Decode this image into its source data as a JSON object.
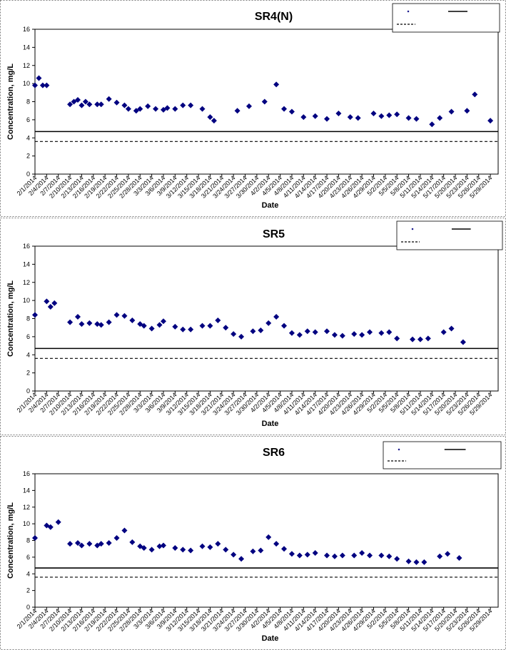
{
  "chart_data": [
    {
      "type": "scatter",
      "title": "SR4(N)",
      "xlabel": "Date",
      "ylabel": "Concentration, mg/L",
      "ylim": [
        0,
        16
      ],
      "yticks": [
        0,
        2,
        4,
        6,
        8,
        10,
        12,
        14,
        16
      ],
      "grid": false,
      "legend_placement": "top-right",
      "marker_color": "#000080",
      "x_tick_labels": [
        "2/1/2014",
        "2/4/2014",
        "2/7/2014",
        "2/10/2014",
        "2/13/2014",
        "2/16/2014",
        "2/19/2014",
        "2/22/2014",
        "2/25/2014",
        "2/28/2014",
        "3/3/2014",
        "3/6/2014",
        "3/9/2014",
        "3/12/2014",
        "3/15/2014",
        "3/18/2014",
        "3/21/2014",
        "3/24/2014",
        "3/27/2014",
        "3/30/2014",
        "4/2/2014",
        "4/5/2014",
        "4/8/2014",
        "4/11/2014",
        "4/14/2014",
        "4/17/2014",
        "4/20/2014",
        "4/23/2014",
        "4/26/2014",
        "4/29/2014",
        "5/2/2014",
        "5/5/2014",
        "5/8/2014",
        "5/11/2014",
        "5/14/2014",
        "5/17/2014",
        "5/20/2014",
        "5/23/2014",
        "5/26/2014",
        "5/29/2014"
      ],
      "x_range": [
        "2/1/2014",
        "5/31/2014"
      ],
      "points": [
        [
          "2/1/2014",
          9.8
        ],
        [
          "2/2/2014",
          10.6
        ],
        [
          "2/3/2014",
          9.8
        ],
        [
          "2/4/2014",
          9.8
        ],
        [
          "2/10/2014",
          7.7
        ],
        [
          "2/11/2014",
          8.0
        ],
        [
          "2/12/2014",
          8.2
        ],
        [
          "2/13/2014",
          7.6
        ],
        [
          "2/14/2014",
          8.0
        ],
        [
          "2/15/2014",
          7.7
        ],
        [
          "2/17/2014",
          7.7
        ],
        [
          "2/18/2014",
          7.7
        ],
        [
          "2/20/2014",
          8.3
        ],
        [
          "2/22/2014",
          7.9
        ],
        [
          "2/24/2014",
          7.6
        ],
        [
          "2/25/2014",
          7.2
        ],
        [
          "2/27/2014",
          7.0
        ],
        [
          "2/28/2014",
          7.2
        ],
        [
          "3/2/2014",
          7.5
        ],
        [
          "3/4/2014",
          7.2
        ],
        [
          "3/6/2014",
          7.1
        ],
        [
          "3/7/2014",
          7.3
        ],
        [
          "3/9/2014",
          7.2
        ],
        [
          "3/11/2014",
          7.6
        ],
        [
          "3/13/2014",
          7.6
        ],
        [
          "3/16/2014",
          7.2
        ],
        [
          "3/18/2014",
          6.3
        ],
        [
          "3/19/2014",
          5.9
        ],
        [
          "3/25/2014",
          7.0
        ],
        [
          "3/28/2014",
          7.5
        ],
        [
          "4/1/2014",
          8.0
        ],
        [
          "4/4/2014",
          9.9
        ],
        [
          "4/6/2014",
          7.2
        ],
        [
          "4/8/2014",
          6.9
        ],
        [
          "4/11/2014",
          6.3
        ],
        [
          "4/14/2014",
          6.4
        ],
        [
          "4/17/2014",
          6.1
        ],
        [
          "4/20/2014",
          6.7
        ],
        [
          "4/23/2014",
          6.3
        ],
        [
          "4/25/2014",
          6.2
        ],
        [
          "4/29/2014",
          6.7
        ],
        [
          "5/1/2014",
          6.4
        ],
        [
          "5/3/2014",
          6.5
        ],
        [
          "5/5/2014",
          6.6
        ],
        [
          "5/8/2014",
          6.2
        ],
        [
          "5/10/2014",
          6.1
        ],
        [
          "5/14/2014",
          5.5
        ],
        [
          "5/16/2014",
          6.2
        ],
        [
          "5/19/2014",
          6.9
        ],
        [
          "5/23/2014",
          7.0
        ],
        [
          "5/25/2014",
          8.8
        ],
        [
          "5/29/2014",
          5.9
        ]
      ],
      "reference_lines": [
        {
          "style": "solid",
          "value": 4.7
        },
        {
          "style": "dashed",
          "value": 3.6
        }
      ]
    },
    {
      "type": "scatter",
      "title": "SR5",
      "xlabel": "Date",
      "ylabel": "Concentration, mg/L",
      "ylim": [
        0,
        16
      ],
      "yticks": [
        0,
        2,
        4,
        6,
        8,
        10,
        12,
        14,
        16
      ],
      "grid": false,
      "legend_placement": "top-right",
      "marker_color": "#000080",
      "x_tick_labels": [
        "2/1/2014",
        "2/4/2014",
        "2/7/2014",
        "2/10/2014",
        "2/13/2014",
        "2/16/2014",
        "2/19/2014",
        "2/22/2014",
        "2/25/2014",
        "2/28/2014",
        "3/3/2014",
        "3/6/2014",
        "3/9/2014",
        "3/12/2014",
        "3/15/2014",
        "3/18/2014",
        "3/21/2014",
        "3/24/2014",
        "3/27/2014",
        "3/30/2014",
        "4/2/2014",
        "4/5/2014",
        "4/8/2014",
        "4/11/2014",
        "4/14/2014",
        "4/17/2014",
        "4/20/2014",
        "4/23/2014",
        "4/26/2014",
        "4/29/2014",
        "5/2/2014",
        "5/5/2014",
        "5/8/2014",
        "5/11/2014",
        "5/14/2014",
        "5/17/2014",
        "5/20/2014",
        "5/23/2014",
        "5/26/2014",
        "5/29/2014"
      ],
      "x_range": [
        "2/1/2014",
        "5/31/2014"
      ],
      "points": [
        [
          "2/1/2014",
          8.4
        ],
        [
          "2/4/2014",
          9.9
        ],
        [
          "2/5/2014",
          9.3
        ],
        [
          "2/6/2014",
          9.7
        ],
        [
          "2/10/2014",
          7.6
        ],
        [
          "2/12/2014",
          8.2
        ],
        [
          "2/13/2014",
          7.4
        ],
        [
          "2/15/2014",
          7.5
        ],
        [
          "2/17/2014",
          7.4
        ],
        [
          "2/18/2014",
          7.3
        ],
        [
          "2/20/2014",
          7.6
        ],
        [
          "2/22/2014",
          8.4
        ],
        [
          "2/24/2014",
          8.3
        ],
        [
          "2/26/2014",
          7.8
        ],
        [
          "2/28/2014",
          7.4
        ],
        [
          "3/1/2014",
          7.2
        ],
        [
          "3/3/2014",
          6.9
        ],
        [
          "3/5/2014",
          7.3
        ],
        [
          "3/6/2014",
          7.7
        ],
        [
          "3/9/2014",
          7.1
        ],
        [
          "3/11/2014",
          6.8
        ],
        [
          "3/13/2014",
          6.8
        ],
        [
          "3/16/2014",
          7.2
        ],
        [
          "3/18/2014",
          7.2
        ],
        [
          "3/20/2014",
          7.8
        ],
        [
          "3/22/2014",
          7.0
        ],
        [
          "3/24/2014",
          6.3
        ],
        [
          "3/26/2014",
          6.0
        ],
        [
          "3/29/2014",
          6.6
        ],
        [
          "3/31/2014",
          6.7
        ],
        [
          "4/2/2014",
          7.5
        ],
        [
          "4/4/2014",
          8.2
        ],
        [
          "4/6/2014",
          7.2
        ],
        [
          "4/8/2014",
          6.4
        ],
        [
          "4/10/2014",
          6.2
        ],
        [
          "4/12/2014",
          6.6
        ],
        [
          "4/14/2014",
          6.5
        ],
        [
          "4/17/2014",
          6.6
        ],
        [
          "4/19/2014",
          6.2
        ],
        [
          "4/21/2014",
          6.1
        ],
        [
          "4/24/2014",
          6.3
        ],
        [
          "4/26/2014",
          6.2
        ],
        [
          "4/28/2014",
          6.5
        ],
        [
          "5/1/2014",
          6.4
        ],
        [
          "5/3/2014",
          6.5
        ],
        [
          "5/5/2014",
          5.8
        ],
        [
          "5/9/2014",
          5.7
        ],
        [
          "5/11/2014",
          5.7
        ],
        [
          "5/13/2014",
          5.8
        ],
        [
          "5/17/2014",
          6.5
        ],
        [
          "5/19/2014",
          6.9
        ],
        [
          "5/22/2014",
          5.4
        ]
      ],
      "reference_lines": [
        {
          "style": "solid",
          "value": 4.7
        },
        {
          "style": "dashed",
          "value": 3.6
        }
      ]
    },
    {
      "type": "scatter",
      "title": "SR6",
      "xlabel": "Date",
      "ylabel": "Concentration, mg/L",
      "ylim": [
        0,
        16
      ],
      "yticks": [
        0,
        2,
        4,
        6,
        8,
        10,
        12,
        14,
        16
      ],
      "grid": false,
      "legend_placement": "top-right",
      "marker_color": "#000080",
      "x_tick_labels": [
        "2/1/2014",
        "2/4/2014",
        "2/7/2014",
        "2/10/2014",
        "2/13/2014",
        "2/16/2014",
        "2/19/2014",
        "2/22/2014",
        "2/25/2014",
        "2/28/2014",
        "3/3/2014",
        "3/6/2014",
        "3/9/2014",
        "3/12/2014",
        "3/15/2014",
        "3/18/2014",
        "3/21/2014",
        "3/24/2014",
        "3/27/2014",
        "3/30/2014",
        "4/2/2014",
        "4/5/2014",
        "4/8/2014",
        "4/11/2014",
        "4/14/2014",
        "4/17/2014",
        "4/20/2014",
        "4/23/2014",
        "4/26/2014",
        "4/29/2014",
        "5/2/2014",
        "5/5/2014",
        "5/8/2014",
        "5/11/2014",
        "5/14/2014",
        "5/17/2014",
        "5/20/2014",
        "5/23/2014",
        "5/26/2014",
        "5/29/2014"
      ],
      "x_range": [
        "2/1/2014",
        "5/31/2014"
      ],
      "points": [
        [
          "2/1/2014",
          8.3
        ],
        [
          "2/4/2014",
          9.8
        ],
        [
          "2/5/2014",
          9.6
        ],
        [
          "2/7/2014",
          10.2
        ],
        [
          "2/10/2014",
          7.6
        ],
        [
          "2/12/2014",
          7.7
        ],
        [
          "2/13/2014",
          7.4
        ],
        [
          "2/15/2014",
          7.6
        ],
        [
          "2/17/2014",
          7.4
        ],
        [
          "2/18/2014",
          7.6
        ],
        [
          "2/20/2014",
          7.7
        ],
        [
          "2/22/2014",
          8.3
        ],
        [
          "2/24/2014",
          9.2
        ],
        [
          "2/26/2014",
          7.8
        ],
        [
          "2/28/2014",
          7.3
        ],
        [
          "3/1/2014",
          7.1
        ],
        [
          "3/3/2014",
          6.9
        ],
        [
          "3/5/2014",
          7.3
        ],
        [
          "3/6/2014",
          7.4
        ],
        [
          "3/9/2014",
          7.1
        ],
        [
          "3/11/2014",
          6.9
        ],
        [
          "3/13/2014",
          6.8
        ],
        [
          "3/16/2014",
          7.3
        ],
        [
          "3/18/2014",
          7.2
        ],
        [
          "3/20/2014",
          7.6
        ],
        [
          "3/22/2014",
          6.9
        ],
        [
          "3/24/2014",
          6.3
        ],
        [
          "3/26/2014",
          5.8
        ],
        [
          "3/29/2014",
          6.7
        ],
        [
          "3/31/2014",
          6.8
        ],
        [
          "4/2/2014",
          8.4
        ],
        [
          "4/4/2014",
          7.6
        ],
        [
          "4/6/2014",
          7.0
        ],
        [
          "4/8/2014",
          6.4
        ],
        [
          "4/10/2014",
          6.2
        ],
        [
          "4/12/2014",
          6.3
        ],
        [
          "4/14/2014",
          6.5
        ],
        [
          "4/17/2014",
          6.2
        ],
        [
          "4/19/2014",
          6.1
        ],
        [
          "4/21/2014",
          6.2
        ],
        [
          "4/24/2014",
          6.2
        ],
        [
          "4/26/2014",
          6.5
        ],
        [
          "4/28/2014",
          6.2
        ],
        [
          "5/1/2014",
          6.2
        ],
        [
          "5/3/2014",
          6.1
        ],
        [
          "5/5/2014",
          5.8
        ],
        [
          "5/8/2014",
          5.5
        ],
        [
          "5/10/2014",
          5.4
        ],
        [
          "5/12/2014",
          5.4
        ],
        [
          "5/16/2014",
          6.1
        ],
        [
          "5/18/2014",
          6.4
        ],
        [
          "5/21/2014",
          5.9
        ]
      ],
      "reference_lines": [
        {
          "style": "solid",
          "value": 4.7
        },
        {
          "style": "dashed",
          "value": 3.6
        }
      ]
    }
  ]
}
